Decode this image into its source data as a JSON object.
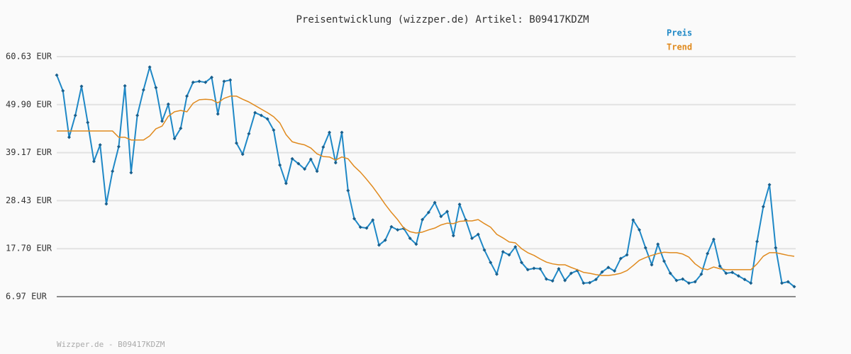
{
  "chart_data": {
    "type": "line",
    "title": "Preisentwicklung (wizzper.de) Artikel: B09417KDZM",
    "footer": "Wizzper.de - B09417KDZM",
    "legend": "top-right",
    "grid": true,
    "ylim": [
      6.97,
      60.63
    ],
    "yticks": [
      {
        "value": 6.97,
        "label": "6.97 EUR"
      },
      {
        "value": 17.7,
        "label": "17.70 EUR"
      },
      {
        "value": 28.43,
        "label": "28.43 EUR"
      },
      {
        "value": 39.17,
        "label": "39.17 EUR"
      },
      {
        "value": 49.9,
        "label": "49.90 EUR"
      },
      {
        "value": 60.63,
        "label": "60.63 EUR"
      }
    ],
    "series": [
      {
        "name": "Preis",
        "color": "#1f88c6",
        "markers": true,
        "values": [
          56.5,
          53.0,
          42.6,
          47.5,
          54.0,
          45.9,
          37.2,
          40.9,
          27.7,
          35.0,
          40.5,
          54.1,
          34.7,
          47.5,
          53.2,
          58.3,
          53.7,
          46.2,
          50.0,
          42.3,
          44.6,
          51.8,
          54.9,
          55.1,
          54.9,
          56.0,
          47.8,
          55.1,
          55.4,
          41.3,
          38.8,
          43.4,
          48.1,
          47.5,
          46.7,
          44.2,
          36.4,
          32.3,
          37.8,
          36.7,
          35.5,
          37.7,
          35.0,
          40.4,
          43.7,
          36.9,
          43.7,
          30.7,
          24.4,
          22.5,
          22.3,
          24.1,
          18.5,
          19.6,
          22.6,
          21.9,
          22.2,
          20.0,
          18.7,
          24.2,
          25.8,
          28.0,
          24.9,
          26.0,
          20.6,
          27.6,
          24.1,
          20.0,
          20.9,
          17.4,
          14.6,
          12.0,
          17.0,
          16.3,
          18.1,
          14.6,
          13.0,
          13.3,
          13.2,
          10.9,
          10.5,
          13.2,
          10.6,
          12.2,
          12.8,
          10.0,
          10.1,
          10.8,
          12.5,
          13.5,
          12.7,
          15.5,
          16.3,
          24.1,
          21.9,
          17.9,
          14.1,
          18.7,
          14.9,
          12.2,
          10.6,
          10.9,
          10.0,
          10.3,
          12.0,
          16.6,
          19.8,
          13.8,
          12.2,
          12.4,
          11.6,
          10.8,
          10.0,
          19.3,
          27.1,
          32.0,
          17.9,
          10.0,
          10.3,
          9.2
        ]
      },
      {
        "name": "Trend",
        "color": "#e08a1e",
        "markers": false,
        "values": [
          44.0,
          44.0,
          44.0,
          44.0,
          44.0,
          44.0,
          44.0,
          44.0,
          44.0,
          44.0,
          42.6,
          42.6,
          42.0,
          42.0,
          42.0,
          42.9,
          44.5,
          45.1,
          47.3,
          48.3,
          48.6,
          48.3,
          50.2,
          51.0,
          51.1,
          51.0,
          50.3,
          51.3,
          51.8,
          51.8,
          51.1,
          50.5,
          49.7,
          48.9,
          48.1,
          47.2,
          45.8,
          43.2,
          41.6,
          41.2,
          40.9,
          40.2,
          38.9,
          38.3,
          38.2,
          37.5,
          38.2,
          37.8,
          36.1,
          34.8,
          33.2,
          31.5,
          29.6,
          27.6,
          25.8,
          24.2,
          22.3,
          21.5,
          21.2,
          21.4,
          21.9,
          22.3,
          23.0,
          23.4,
          23.3,
          23.8,
          23.9,
          23.9,
          24.2,
          23.3,
          22.5,
          20.9,
          20.1,
          19.2,
          19.0,
          17.7,
          16.8,
          16.2,
          15.4,
          14.7,
          14.3,
          14.1,
          14.1,
          13.5,
          13.0,
          12.4,
          12.2,
          11.9,
          11.7,
          11.7,
          11.9,
          12.2,
          12.8,
          13.9,
          15.1,
          15.7,
          16.2,
          16.6,
          16.9,
          16.8,
          16.8,
          16.5,
          15.8,
          14.3,
          13.3,
          13.0,
          13.6,
          13.2,
          13.0,
          13.0,
          13.0,
          13.0,
          13.0,
          14.3,
          16.0,
          16.8,
          16.8,
          16.5,
          16.2,
          16.0
        ]
      }
    ]
  }
}
